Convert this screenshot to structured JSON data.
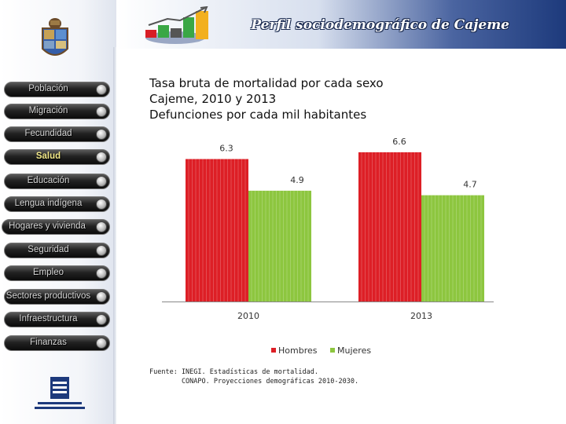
{
  "header": {
    "title": "Perfil sociodemográfico de Cajeme"
  },
  "nav": {
    "items": [
      {
        "label": "Población",
        "active": false
      },
      {
        "label": "Migración",
        "active": false
      },
      {
        "label": "Fecundidad",
        "active": false
      },
      {
        "label": "Salud",
        "active": true
      },
      {
        "label": "Educación",
        "active": false
      },
      {
        "label": "Lengua indígena",
        "active": false
      },
      {
        "label": "Hogares y vivienda",
        "active": false
      },
      {
        "label": "Seguridad",
        "active": false
      },
      {
        "label": "Empleo",
        "active": false
      },
      {
        "label": "Sectores productivos",
        "active": false
      },
      {
        "label": "Infraestructura",
        "active": false
      },
      {
        "label": "Finanzas",
        "active": false
      }
    ]
  },
  "chart_data": {
    "type": "bar",
    "title_lines": [
      "Tasa bruta de mortalidad por cada sexo",
      "Cajeme, 2010 y 2013",
      "Defunciones por cada mil habitantes"
    ],
    "categories": [
      "2010",
      "2013"
    ],
    "series": [
      {
        "name": "Hombres",
        "values": [
          6.3,
          6.6
        ],
        "color": "#dd1f26"
      },
      {
        "name": "Mujeres",
        "values": [
          4.9,
          4.7
        ],
        "color": "#8dc63f"
      }
    ],
    "data_labels": [
      [
        "6.3",
        "6.6"
      ],
      [
        "4.9",
        "4.7"
      ]
    ],
    "ylim": [
      0,
      7.5
    ],
    "grid": false,
    "legend_position": "bottom"
  },
  "source": {
    "line1": "Fuente: INEGI. Estadísticas de mortalidad.",
    "line2": "        CONAPO. Proyecciones demográficas 2010-2030."
  },
  "colors": {
    "header_dark": "#1d3a7c",
    "nav_active_text": "#f3e98a"
  },
  "icons": [
    "coat-of-arms-icon",
    "growth-chart-logo-icon",
    "inegi-logo-icon"
  ]
}
